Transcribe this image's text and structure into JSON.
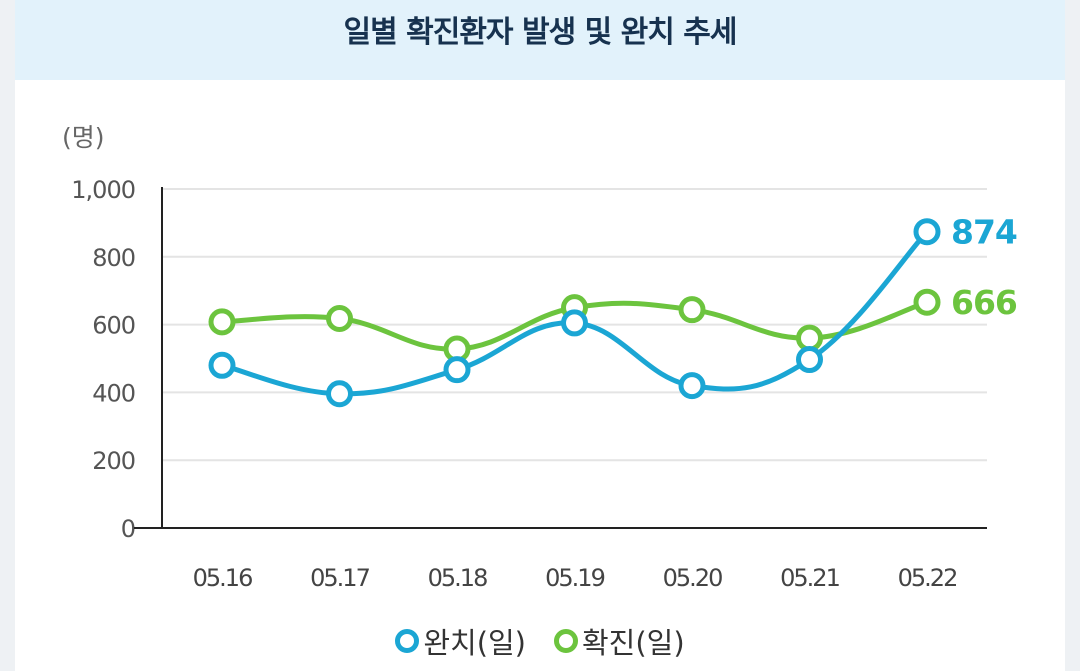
{
  "header": {
    "title": "일별 확진환자 발생 및 완치 추세"
  },
  "chart_data": {
    "type": "line",
    "title": "일별 확진환자 발생 및 완치 추세",
    "unit_label": "(명)",
    "xlabel": "",
    "ylabel": "(명)",
    "categories": [
      "05.16",
      "05.17",
      "05.18",
      "05.19",
      "05.20",
      "05.21",
      "05.22"
    ],
    "ylim": [
      0,
      1000
    ],
    "yticks": [
      0,
      200,
      400,
      600,
      800,
      1000
    ],
    "ytick_labels": [
      "0",
      "200",
      "400",
      "600",
      "800",
      "1,000"
    ],
    "grid": true,
    "series": [
      {
        "name": "완치(일)",
        "color": "#1ba6d4",
        "values": [
          480,
          396,
          467,
          605,
          420,
          497,
          874
        ],
        "last_label": "874"
      },
      {
        "name": "확진(일)",
        "color": "#6cc43e",
        "values": [
          608,
          618,
          528,
          650,
          644,
          560,
          666
        ],
        "last_label": "666"
      }
    ]
  }
}
